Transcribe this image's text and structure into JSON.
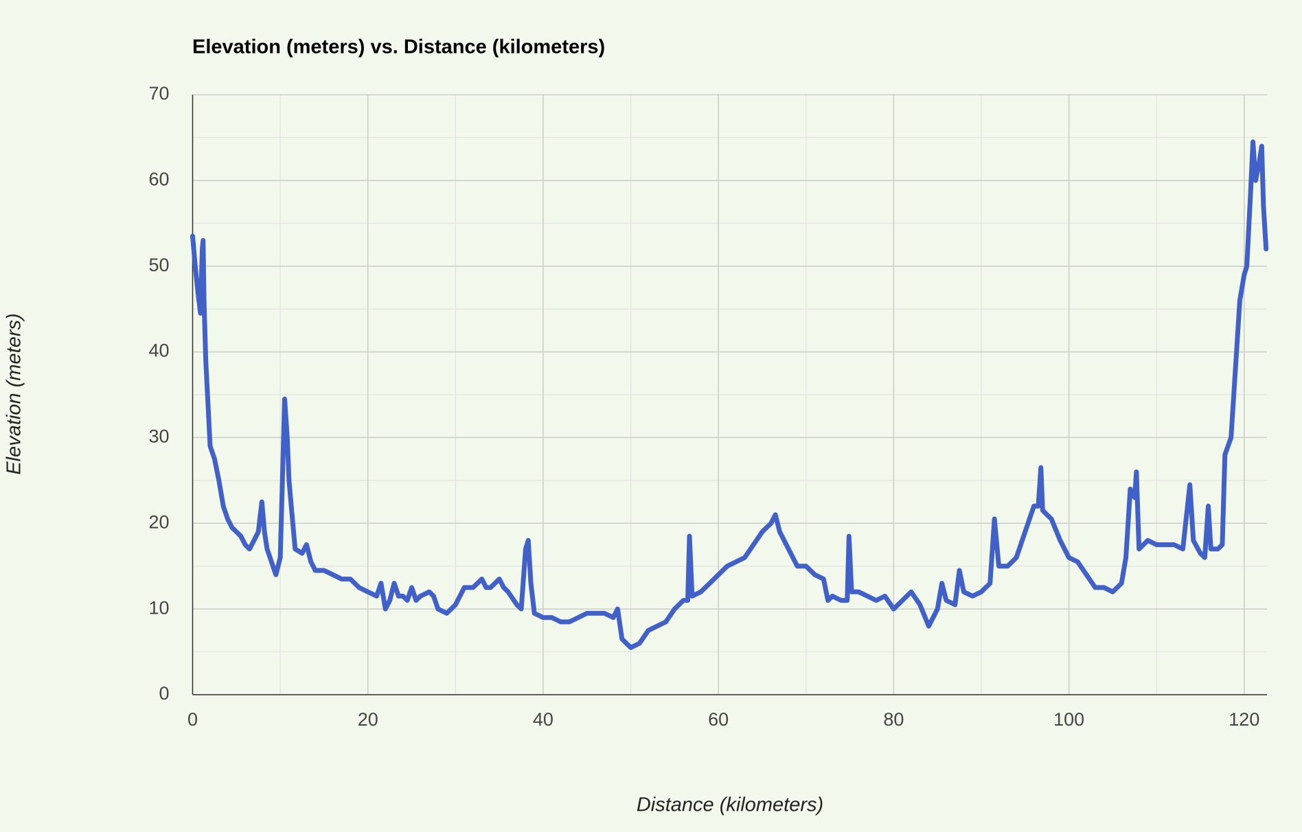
{
  "chart_data": {
    "type": "line",
    "title": "Elevation (meters) vs. Distance (kilometers)",
    "xlabel": "Distance (kilometers)",
    "ylabel": "Elevation (meters)",
    "color": "#4161c9",
    "grid": true,
    "xlim": [
      0,
      122.6
    ],
    "xticks": [
      0,
      20,
      40,
      60,
      80,
      100,
      120
    ],
    "ylim": [
      0,
      70
    ],
    "yticks": [
      0,
      10,
      20,
      30,
      40,
      50,
      60,
      70
    ],
    "x": [
      0,
      0.3,
      0.6,
      0.9,
      1.1,
      1.2,
      1.3,
      1.5,
      1.7,
      2.0,
      2.5,
      3.0,
      3.5,
      4.0,
      4.5,
      5.0,
      5.5,
      6.0,
      6.5,
      7.0,
      7.5,
      7.9,
      8.2,
      8.5,
      9.0,
      9.5,
      10.0,
      10.3,
      10.5,
      10.8,
      11.0,
      11.3,
      11.7,
      12.5,
      13.0,
      13.5,
      14,
      15,
      16,
      17,
      18,
      19,
      20,
      21,
      21.5,
      22,
      22.5,
      23,
      23.5,
      24,
      24.5,
      25,
      25.5,
      26,
      27,
      27.5,
      28,
      29,
      30,
      31,
      32,
      33,
      33.5,
      34,
      35,
      35.5,
      36,
      37,
      37.5,
      38,
      38.3,
      38.6,
      39,
      40,
      41,
      42,
      43,
      44,
      45,
      46,
      47,
      48,
      48.5,
      49,
      50,
      51,
      52,
      53,
      54,
      55,
      56,
      56.5,
      56.7,
      57,
      58,
      59,
      60,
      61,
      62,
      63,
      64,
      65,
      66,
      66.5,
      67,
      68,
      69,
      70,
      71,
      72,
      72.5,
      73,
      74,
      74.7,
      74.9,
      75.2,
      76,
      77,
      78,
      79,
      80,
      81,
      82,
      83,
      84,
      85,
      85.5,
      86,
      87,
      87.5,
      88,
      89,
      90,
      91,
      91.5,
      92,
      93,
      94,
      95,
      96,
      96.5,
      96.8,
      97,
      98,
      99,
      100,
      101,
      102,
      103,
      104,
      105,
      106,
      106.5,
      107,
      107.5,
      107.7,
      108,
      109,
      110,
      111,
      112,
      113,
      113.8,
      114.2,
      115,
      115.5,
      115.9,
      116.2,
      117,
      117.5,
      117.8,
      118.5,
      119,
      119.5,
      120,
      120.3,
      120.7,
      121,
      121.3,
      121.7,
      122,
      122.2,
      122.5
    ],
    "values": [
      53.5,
      50,
      47,
      44.5,
      52,
      53,
      46,
      39,
      35,
      29,
      27.5,
      25,
      22,
      20.5,
      19.5,
      19,
      18.5,
      17.5,
      17,
      18,
      19,
      22.5,
      19,
      17,
      15.5,
      14,
      16,
      27,
      34.5,
      30,
      25,
      21.5,
      17,
      16.5,
      17.5,
      15.5,
      14.5,
      14.5,
      14,
      13.5,
      13.5,
      12.5,
      12,
      11.5,
      13,
      10,
      11,
      13,
      11.5,
      11.5,
      11,
      12.5,
      11,
      11.5,
      12,
      11.5,
      10,
      9.5,
      10.5,
      12.5,
      12.5,
      13.5,
      12.5,
      12.5,
      13.5,
      12.5,
      12,
      10.5,
      10,
      17,
      18,
      13,
      9.5,
      9,
      9,
      8.5,
      8.5,
      9,
      9.5,
      9.5,
      9.5,
      9,
      10,
      6.5,
      5.5,
      6,
      7.5,
      8,
      8.5,
      10,
      11,
      11,
      18.5,
      11.5,
      12,
      13,
      14,
      15,
      15.5,
      16,
      17.5,
      19,
      20,
      21,
      19,
      17,
      15,
      15,
      14,
      13.5,
      11,
      11.5,
      11,
      11,
      18.5,
      12,
      12,
      11.5,
      11,
      11.5,
      10,
      11,
      12,
      10.5,
      8,
      10,
      13,
      11,
      10.5,
      14.5,
      12,
      11.5,
      12,
      13,
      20.5,
      15,
      15,
      16,
      19,
      22,
      22,
      26.5,
      21.5,
      20.5,
      18,
      16,
      15.5,
      14,
      12.5,
      12.5,
      12,
      13,
      16,
      24,
      23,
      26,
      17,
      18,
      17.5,
      17.5,
      17.5,
      17,
      24.5,
      18,
      16.5,
      16,
      22,
      17,
      17,
      17.5,
      28,
      30,
      38,
      46,
      49,
      50,
      58,
      64.5,
      60,
      62,
      64,
      57,
      52
    ]
  }
}
